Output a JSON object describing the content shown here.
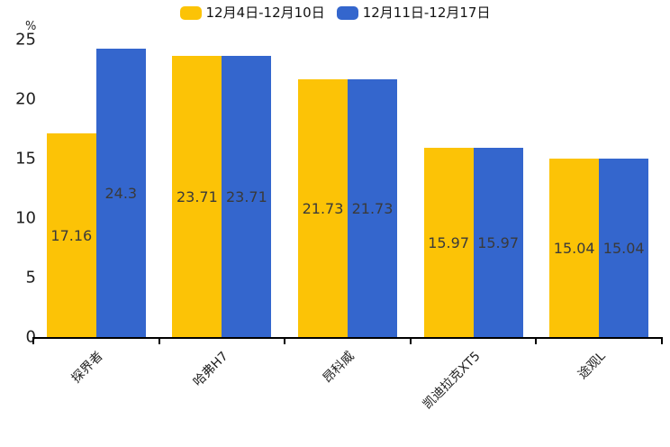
{
  "y_axis": {
    "unit_label": "%"
  },
  "chart_data": {
    "type": "bar",
    "categories": [
      "探界者",
      "哈弗H7",
      "昂科威",
      "凯迪拉克XT5",
      "途观L"
    ],
    "series": [
      {
        "name": "12月4日-12月10日",
        "color": "#FCC306",
        "values": [
          17.16,
          23.71,
          21.73,
          15.97,
          15.04
        ]
      },
      {
        "name": "12月11日-12月17日",
        "color": "#3466CD",
        "values": [
          24.3,
          23.71,
          21.73,
          15.97,
          15.04
        ]
      }
    ],
    "title": "",
    "xlabel": "",
    "ylabel": "%",
    "ylim": [
      0,
      25
    ],
    "yticks": [
      0,
      5,
      10,
      15,
      20,
      25
    ],
    "grid": false,
    "legend_position": "top",
    "value_labels": "inside-center",
    "x_tick_label_rotation": 45
  }
}
